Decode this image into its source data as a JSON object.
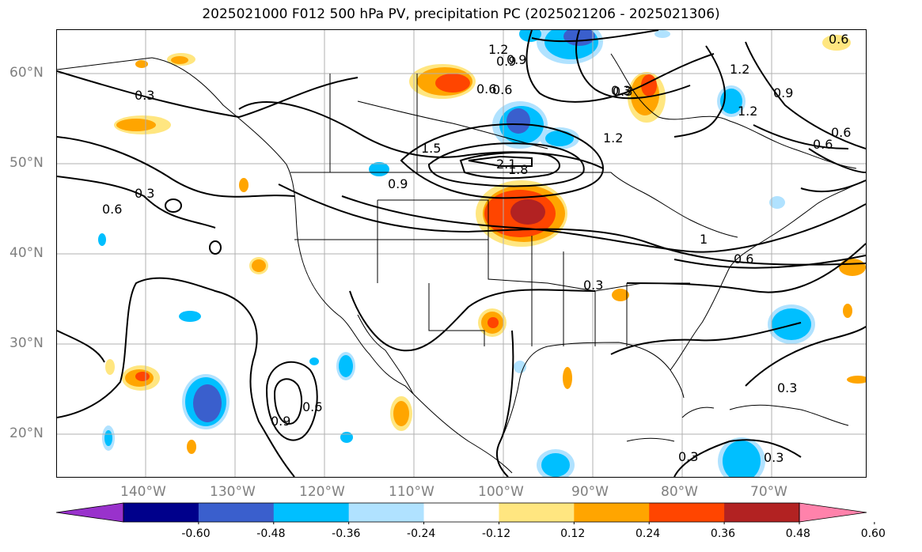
{
  "title": "2025021000 F012 500 hPa PV, precipitation PC (2025021206 - 2025021306)",
  "lat_labels": [
    "60°N",
    "50°N",
    "40°N",
    "30°N",
    "20°N"
  ],
  "lon_labels": [
    "140°W",
    "130°W",
    "120°W",
    "110°W",
    "100°W",
    "90°W",
    "80°W",
    "70°W"
  ],
  "contour_labels": [
    "1.2",
    "0.9",
    "0.6",
    "0.3",
    "0.6",
    "1.2",
    "0.3",
    "1.2",
    "0.9",
    "0.6",
    "0.9",
    "0.3",
    "1.5",
    "2.1",
    "1.8",
    "0.9",
    "0.3",
    "0.6",
    "1.2",
    "0.6",
    "0.3",
    "1",
    "0.6",
    "0.6",
    "0.9",
    "0.6",
    "0.3",
    "0.3",
    "0.3"
  ],
  "colorbar": {
    "ticks": [
      "-0.60",
      "-0.48",
      "-0.36",
      "-0.24",
      "-0.12",
      "0.12",
      "0.24",
      "0.36",
      "0.48",
      "0.60"
    ],
    "colors": [
      "#9932cc",
      "#00008b",
      "#3a5fcd",
      "#00bfff",
      "#b0e2ff",
      "#ffffff",
      "#ffe680",
      "#ffa500",
      "#ff4500",
      "#b22222",
      "#ff82ab"
    ]
  },
  "legend_colors": {
    "neg_light": "#b0e2ff",
    "neg_mid": "#00bfff",
    "neg_strong": "#3a5fcd",
    "pos_light": "#ffe680",
    "pos_mid": "#ffa500",
    "pos_strong": "#ff4500",
    "pos_max": "#b22222"
  }
}
